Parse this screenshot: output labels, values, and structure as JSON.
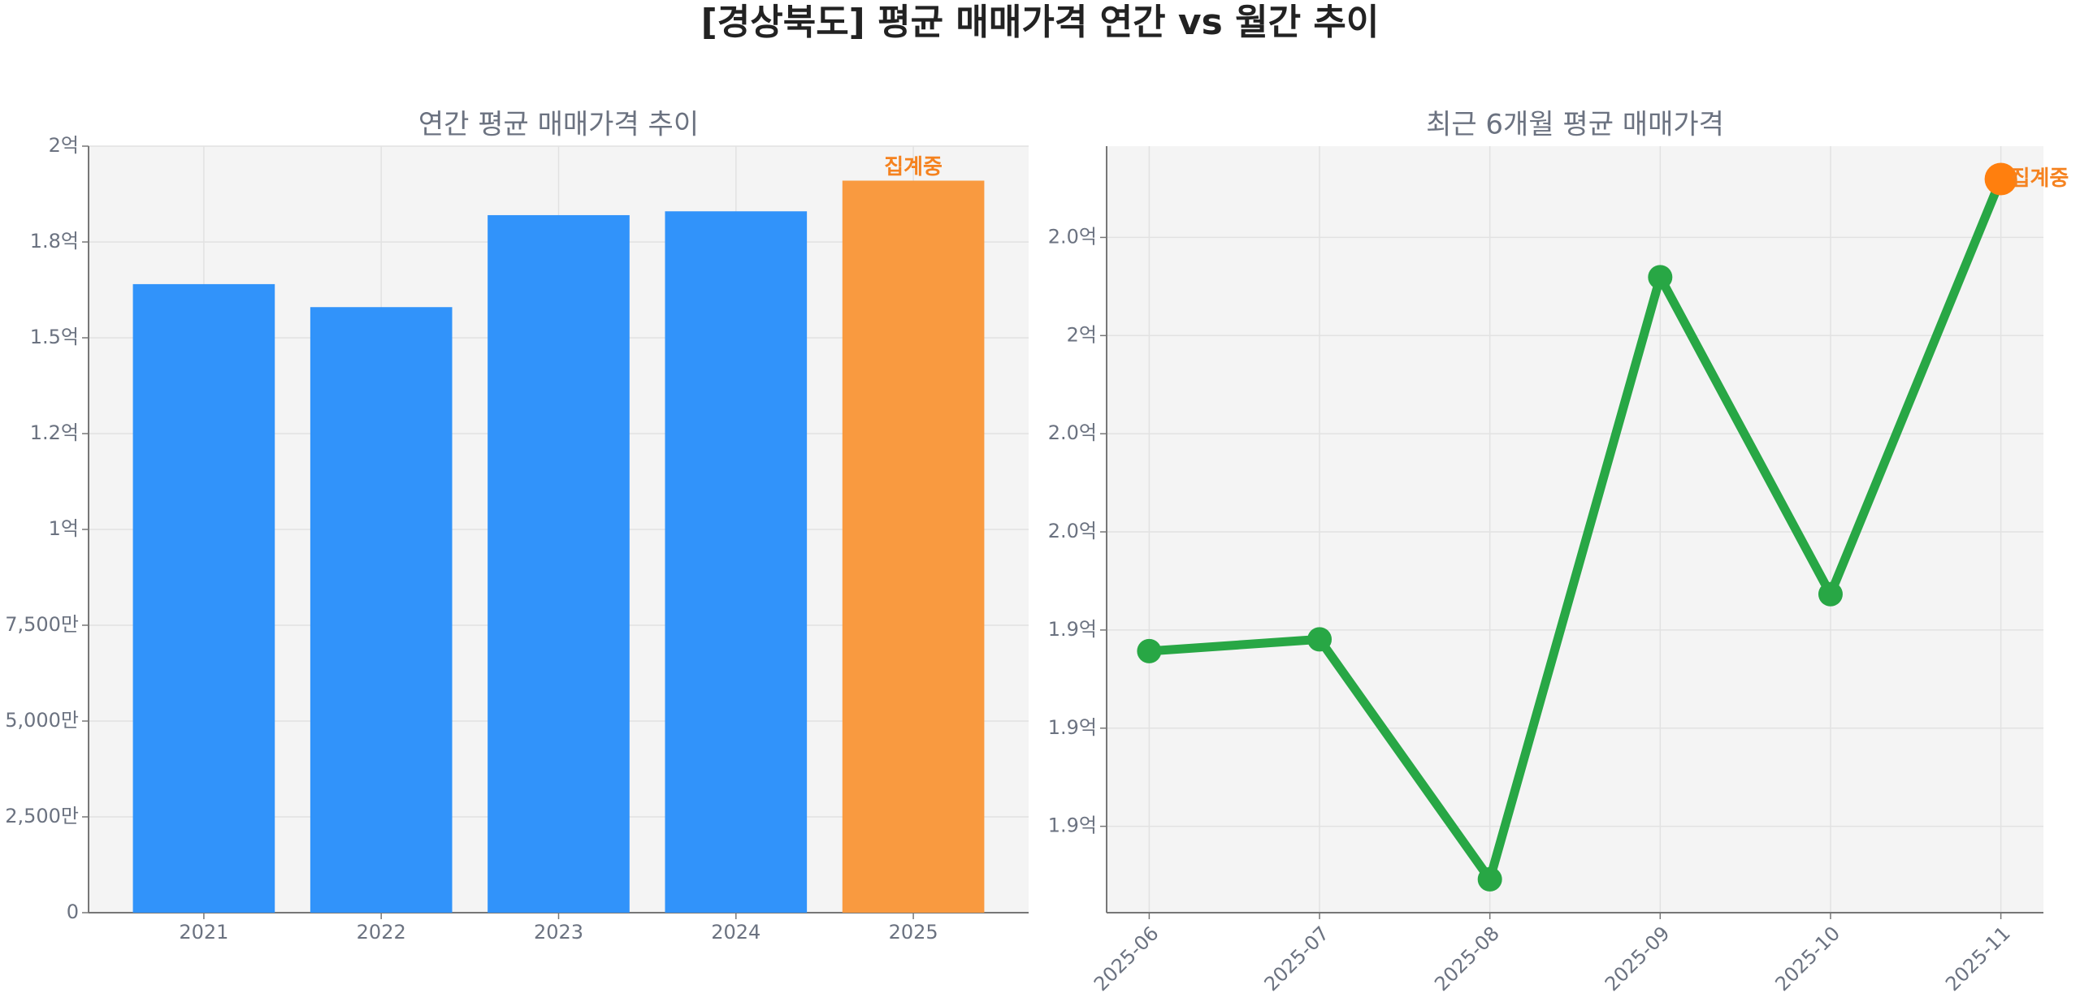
{
  "title": "[경상북도] 평균 매매가격 연간 vs 월간 추이",
  "chart_data": [
    {
      "type": "bar",
      "title": "연간 평균 매매가격 추이",
      "categories": [
        "2021",
        "2022",
        "2023",
        "2024",
        "2025"
      ],
      "values": [
        164000000,
        158000000,
        182000000,
        183000000,
        191000000
      ],
      "colors": [
        "#3193fa",
        "#3193fa",
        "#3193fa",
        "#3193fa",
        "#f99a40"
      ],
      "ylim": [
        0,
        200000000
      ],
      "yticks": [
        0,
        {
          "value": 25000000,
          "label": "2,500만"
        },
        {
          "value": 50000000,
          "label": "5,000만"
        },
        {
          "value": 75000000,
          "label": "7,500만"
        },
        {
          "value": 100000000,
          "label": "1억"
        },
        {
          "value": 125000000,
          "label": "1.2억"
        },
        {
          "value": 150000000,
          "label": "1.5억"
        },
        {
          "value": 175000000,
          "label": "1.8억"
        },
        {
          "value": 200000000,
          "label": "2억"
        }
      ],
      "grid": true,
      "annotation": {
        "text": "집계중",
        "index": 4,
        "color": "#f5821f"
      }
    },
    {
      "type": "line",
      "title": "최근 6개월 평균 매매가격",
      "categories": [
        "2025-06",
        "2025-07",
        "2025-08",
        "2025-09",
        "2025-10",
        "2025-11"
      ],
      "values": [
        193570000,
        193810000,
        188920000,
        201190000,
        194730000,
        203190000
      ],
      "color": "#28a745",
      "highlight_color": "#ff7f0e",
      "ylim": [
        188240000,
        203860000
      ],
      "yticks": [
        {
          "value": 190000000,
          "label": "1.9억"
        },
        {
          "value": 192000000,
          "label": "1.9억"
        },
        {
          "value": 194000000,
          "label": "1.9억"
        },
        {
          "value": 196000000,
          "label": "2.0억"
        },
        {
          "value": 198000000,
          "label": "2.0억"
        },
        {
          "value": 200000000,
          "label": "2억"
        },
        {
          "value": 202000000,
          "label": "2.0억"
        }
      ],
      "grid": true,
      "annotation": {
        "text": "집계중",
        "index": 5,
        "color": "#f5821f"
      }
    }
  ]
}
